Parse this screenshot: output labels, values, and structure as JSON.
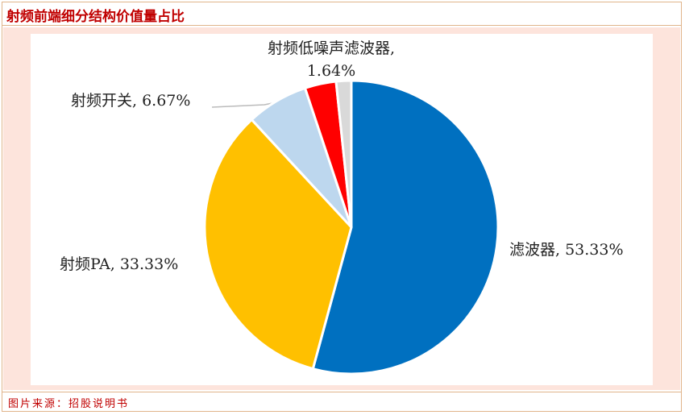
{
  "title": "射频前端细分结构价值量占比",
  "source": "图片来源：招股说明书",
  "chart_data": {
    "type": "pie",
    "values": [
      53.33,
      33.33,
      6.67,
      3.39,
      1.64
    ],
    "value_labels": [
      "滤波器, 53.33%",
      "射频PA, 33.33%",
      "射频开关, 6.67%",
      null,
      "射频低噪声滤波器, 1.64%"
    ],
    "colors": [
      "#0070c0",
      "#ffc000",
      "#bdd7ee",
      "#ff0000",
      "#d9d9d9"
    ]
  }
}
